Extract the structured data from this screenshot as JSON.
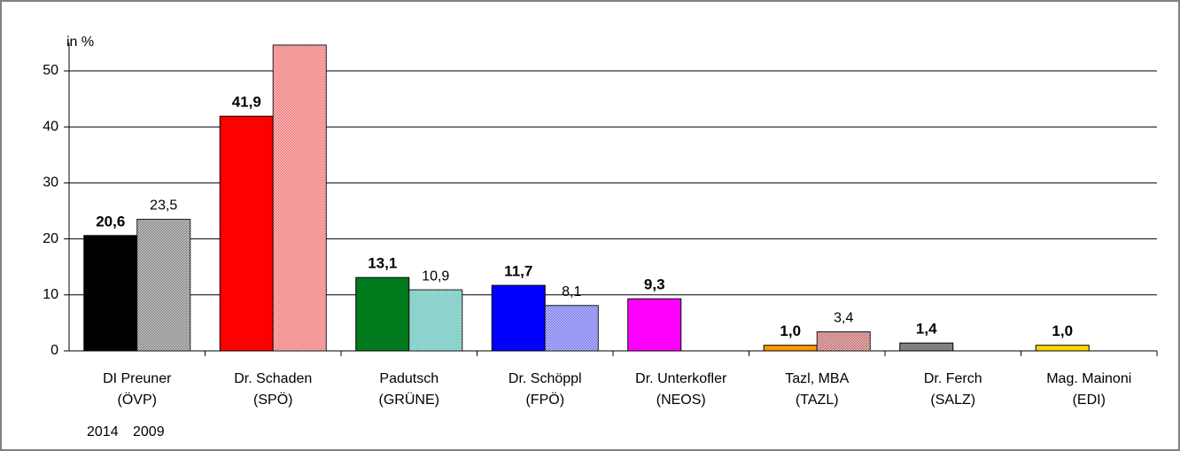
{
  "chart_data": {
    "type": "bar",
    "y_label": "in %",
    "categories": [
      [
        "DI Preuner",
        "(ÖVP)"
      ],
      [
        "Dr. Schaden",
        "(SPÖ)"
      ],
      [
        "Padutsch",
        "(GRÜNE)"
      ],
      [
        "Dr. Schöppl",
        "(FPÖ)"
      ],
      [
        "Dr. Unterkofler",
        "(NEOS)"
      ],
      [
        "Tazl, MBA",
        "(TAZL)"
      ],
      [
        "Dr. Ferch",
        "(SALZ)"
      ],
      [
        "Mag. Mainoni",
        "(EDI)"
      ]
    ],
    "series": [
      {
        "name": "2014",
        "colors": [
          "#000000",
          "#ff0000",
          "#007a1c",
          "#0000ff",
          "#ff00ff",
          "#ff9900",
          "#808080",
          "#ffd700"
        ],
        "values": [
          20.6,
          41.9,
          13.1,
          11.7,
          9.3,
          1.0,
          1.4,
          1.0
        ],
        "value_labels": [
          "20,6",
          "41,9",
          "13,1",
          "11,7",
          "9,3",
          "1,0",
          "1,4",
          "1,0"
        ]
      },
      {
        "name": "2009",
        "colors": [
          "#8c8c8c",
          "#f08080",
          "#6fc7c0",
          "#8080f0",
          null,
          "#c87878",
          null,
          null
        ],
        "values": [
          23.5,
          54.6,
          10.9,
          8.1,
          null,
          3.4,
          null,
          null
        ],
        "value_labels": [
          "23,5",
          null,
          "10,9",
          "8,1",
          null,
          "3,4",
          null,
          null
        ]
      }
    ],
    "ylim": [
      0,
      55
    ],
    "yticks": [
      0,
      10,
      20,
      30,
      40,
      50
    ],
    "grid": true
  }
}
